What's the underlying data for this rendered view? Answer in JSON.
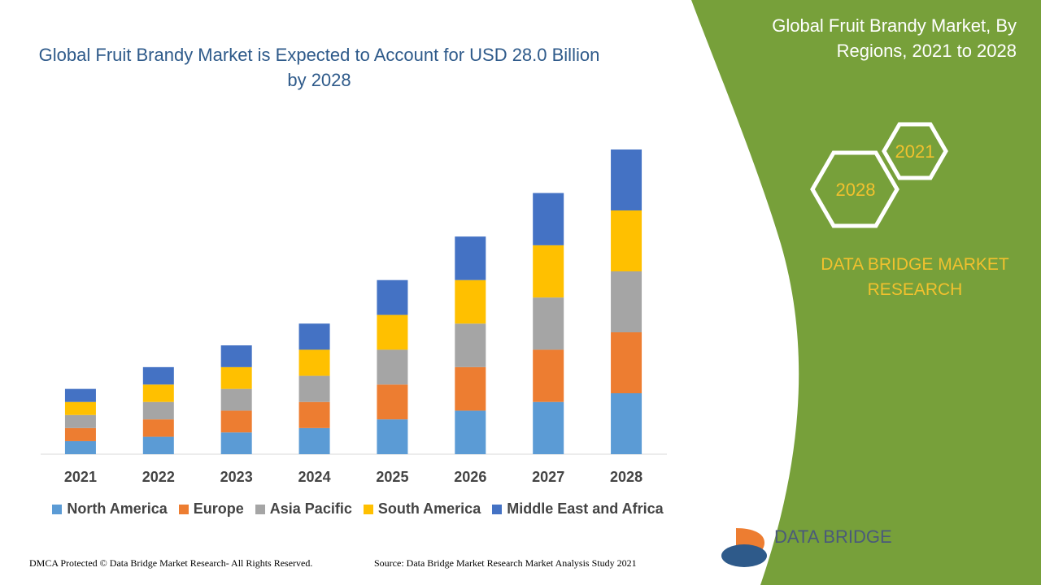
{
  "chart_data": {
    "type": "stacked_bar",
    "title": "Global Fruit Brandy Market is Expected to Account for USD 28.0 Billion by 2028",
    "categories": [
      "2021",
      "2022",
      "2023",
      "2024",
      "2025",
      "2026",
      "2027",
      "2028"
    ],
    "series": [
      {
        "name": "North America",
        "color": "#5b9bd5",
        "values": [
          1.2,
          1.6,
          2.0,
          2.4,
          3.2,
          4.0,
          4.8,
          5.6
        ]
      },
      {
        "name": "Europe",
        "color": "#ed7d31",
        "values": [
          1.2,
          1.6,
          2.0,
          2.4,
          3.2,
          4.0,
          4.8,
          5.6
        ]
      },
      {
        "name": "Asia Pacific",
        "color": "#a5a5a5",
        "values": [
          1.2,
          1.6,
          2.0,
          2.4,
          3.2,
          4.0,
          4.8,
          5.6
        ]
      },
      {
        "name": "South America",
        "color": "#ffc000",
        "values": [
          1.2,
          1.6,
          2.0,
          2.4,
          3.2,
          4.0,
          4.8,
          5.6
        ]
      },
      {
        "name": "Middle East and Africa",
        "color": "#4472c4",
        "values": [
          1.2,
          1.6,
          2.0,
          2.4,
          3.2,
          4.0,
          4.8,
          5.6
        ]
      }
    ],
    "legend": "bottom"
  },
  "panel": {
    "title": "Global Fruit Brandy Market, By Regions, 2021 to 2028",
    "hex_small": "2021",
    "hex_large": "2028",
    "brand": "DATA BRIDGE MARKET RESEARCH"
  },
  "logo": {
    "text": "DATA BRIDGE"
  },
  "footer": {
    "left": "DMCA Protected © Data Bridge Market Research- All Rights Reserved.",
    "right": "Source: Data Bridge Market Research Market Analysis Study 2021"
  }
}
